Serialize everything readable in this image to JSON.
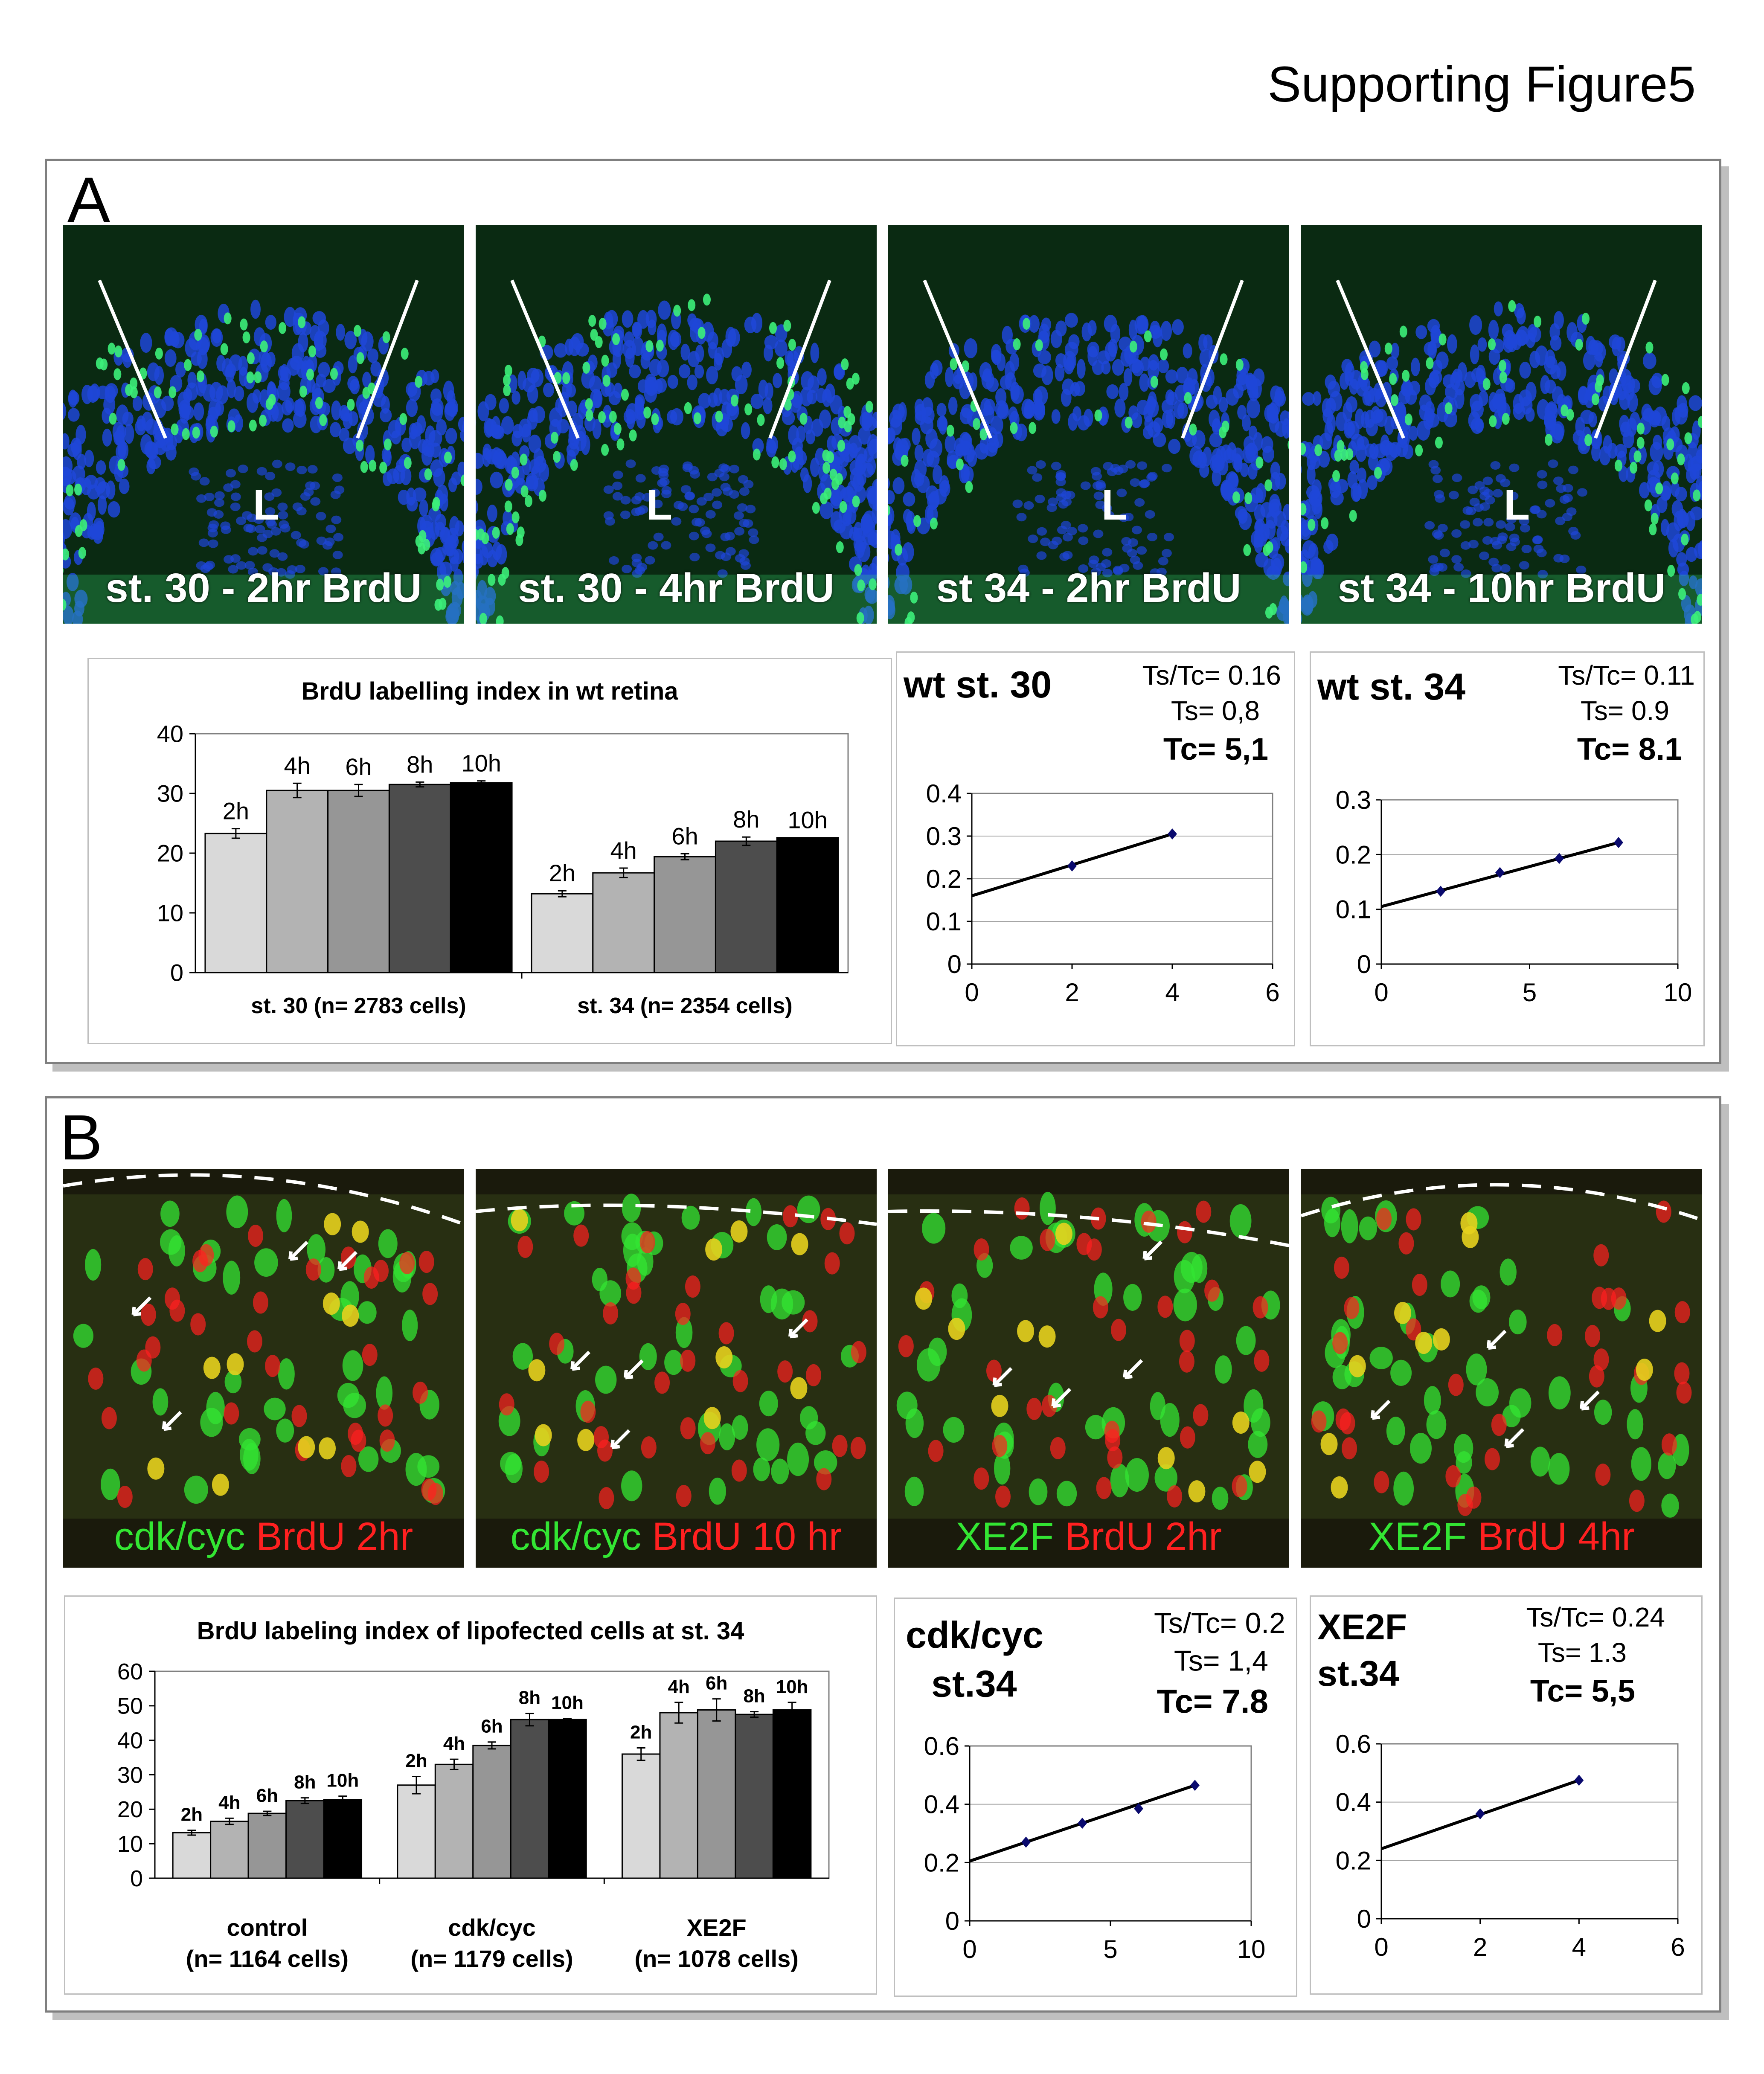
{
  "figure_title": "Supporting Figure5",
  "panelA": {
    "letter": "A",
    "images": [
      {
        "caption": "st. 30 - 2hr BrdU",
        "lens": "L"
      },
      {
        "caption": "st. 30 - 4hr BrdU",
        "lens": "L"
      },
      {
        "caption": "st 34 - 2hr BrdU",
        "lens": "L"
      },
      {
        "caption": "st 34 - 10hr BrdU",
        "lens": "L"
      }
    ],
    "colors": {
      "nuclei": "#1e46d8",
      "brdu": "#3cf07a",
      "background": "#0a2a12"
    }
  },
  "panelB": {
    "letter": "B",
    "images": [
      {
        "green": "cdk/cyc",
        "red": "BrdU 2hr"
      },
      {
        "green": "cdk/cyc",
        "red": "BrdU 10 hr"
      },
      {
        "green": "XE2F",
        "red": "BrdU 2hr"
      },
      {
        "green": "XE2F",
        "red": "BrdU 4hr"
      }
    ],
    "colors": {
      "green": "#33e633",
      "red": "#ff2020"
    }
  },
  "chart_data": [
    {
      "id": "a-bar",
      "type": "bar",
      "title": "BrdU labelling index in wt retina",
      "groups": [
        "st. 30 (n= 2783 cells)",
        "st. 34 (n= 2354 cells)"
      ],
      "bar_labels": [
        "2h",
        "4h",
        "6h",
        "8h",
        "10h"
      ],
      "series": [
        {
          "group": "st. 30 (n= 2783 cells)",
          "values": [
            23.3,
            30.5,
            30.5,
            31.5,
            31.8
          ],
          "errors": [
            0.8,
            1.2,
            1.0,
            0.4,
            0.3
          ]
        },
        {
          "group": "st. 34 (n= 2354 cells)",
          "values": [
            13.2,
            16.7,
            19.4,
            22.0,
            22.6
          ],
          "errors": [
            0.5,
            0.8,
            0.5,
            0.7,
            0.0
          ]
        }
      ],
      "bar_colors": [
        "#d9d9d9",
        "#b3b3b3",
        "#969696",
        "#4d4d4d",
        "#000000"
      ],
      "ylim": [
        0,
        40
      ],
      "yticks": [
        "0",
        "10",
        "20",
        "30",
        "40"
      ],
      "grid": false
    },
    {
      "id": "a-line1",
      "type": "line",
      "name": "wt st. 30",
      "ratio": "Ts/Tc= 0.16",
      "ts": "Ts= 0,8",
      "tc": "Tc= 5,1",
      "x": [
        2,
        4
      ],
      "y": [
        0.23,
        0.305
      ],
      "intercept": 0.16,
      "xlim": [
        0,
        6
      ],
      "ylim": [
        0,
        0.4
      ],
      "xticks": [
        "0",
        "2",
        "4",
        "6"
      ],
      "yticks": [
        "0",
        "0.1",
        "0.2",
        "0.3",
        "0.4"
      ],
      "grid": true
    },
    {
      "id": "a-line2",
      "type": "line",
      "name": "wt st. 34",
      "ratio": "Ts/Tc= 0.11",
      "ts": "Ts= 0.9",
      "tc": "Tc= 8.1",
      "x": [
        2,
        4,
        6,
        8
      ],
      "y": [
        0.133,
        0.167,
        0.193,
        0.222
      ],
      "intercept": 0.105,
      "xlim": [
        0,
        10
      ],
      "ylim": [
        0,
        0.3
      ],
      "xticks": [
        "0",
        "5",
        "10"
      ],
      "yticks": [
        "0",
        "0.1",
        "0.2",
        "0.3"
      ],
      "grid": true
    },
    {
      "id": "b-bar",
      "type": "bar",
      "title": "BrdU labeling index of lipofected cells at st. 34",
      "groups": [
        "control",
        "cdk/cyc",
        "XE2F"
      ],
      "group_counts": [
        "(n= 1164 cells)",
        "(n= 1179 cells)",
        "(n= 1078 cells)"
      ],
      "bar_labels": [
        "2h",
        "4h",
        "6h",
        "8h",
        "10h"
      ],
      "series": [
        {
          "group": "control",
          "values": [
            13.2,
            16.5,
            18.8,
            22.5,
            22.8
          ],
          "errors": [
            0.7,
            0.9,
            0.6,
            0.8,
            1.0
          ]
        },
        {
          "group": "cdk/cyc",
          "values": [
            27.0,
            33.0,
            38.5,
            46.0,
            46.0
          ],
          "errors": [
            2.5,
            1.5,
            1.0,
            1.8,
            0.3
          ]
        },
        {
          "group": "XE2F",
          "values": [
            36.0,
            48.0,
            48.8,
            47.5,
            48.8
          ],
          "errors": [
            1.8,
            3.0,
            3.2,
            0.8,
            2.2
          ]
        }
      ],
      "bar_colors": [
        "#d9d9d9",
        "#b3b3b3",
        "#969696",
        "#4d4d4d",
        "#000000"
      ],
      "ylim": [
        0,
        60
      ],
      "yticks": [
        "0",
        "10",
        "20",
        "30",
        "40",
        "50",
        "60"
      ],
      "grid": false
    },
    {
      "id": "b-line1",
      "type": "line",
      "name": "cdk/cyc",
      "name2": "st.34",
      "ratio": "Ts/Tc= 0.2",
      "ts": "Ts= 1,4",
      "tc": "Tc= 7.8",
      "x": [
        2,
        4,
        6,
        8
      ],
      "y": [
        0.27,
        0.335,
        0.385,
        0.465
      ],
      "intercept": 0.205,
      "xlim": [
        0,
        10
      ],
      "ylim": [
        0,
        0.6
      ],
      "xticks": [
        "0",
        "5",
        "10"
      ],
      "yticks": [
        "0",
        "0.2",
        "0.4",
        "0.6"
      ],
      "grid": true
    },
    {
      "id": "b-line2",
      "type": "line",
      "name": "XE2F",
      "name2": "st.34",
      "ratio": "Ts/Tc= 0.24",
      "ts": "Ts= 1.3",
      "tc": "Tc= 5,5",
      "x": [
        2,
        4
      ],
      "y": [
        0.36,
        0.475
      ],
      "intercept": 0.24,
      "xlim": [
        0,
        6
      ],
      "ylim": [
        0,
        0.6
      ],
      "xticks": [
        "0",
        "2",
        "4",
        "6"
      ],
      "yticks": [
        "0",
        "0.2",
        "0.4",
        "0.6"
      ],
      "grid": true
    }
  ]
}
